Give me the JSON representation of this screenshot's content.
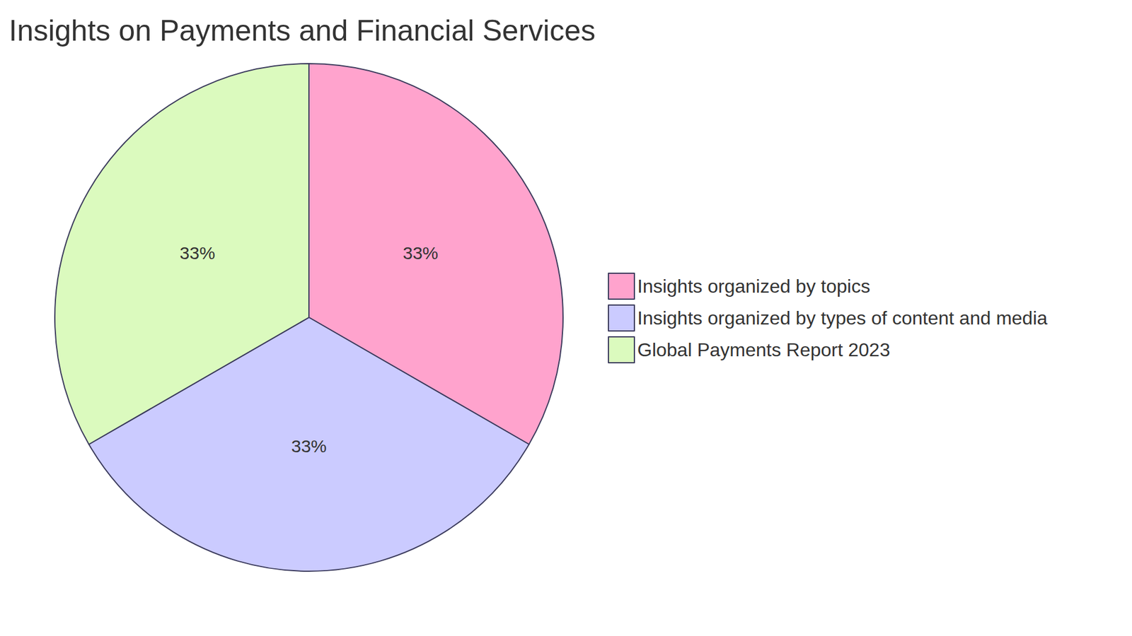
{
  "chart_data": {
    "type": "pie",
    "title": "Insights on Payments and Financial Services",
    "categories": [
      "Insights organized by topics",
      "Insights organized by types of content and media",
      "Global Payments Report 2023"
    ],
    "values": [
      33,
      33,
      33
    ],
    "value_labels": [
      "33%",
      "33%",
      "33%"
    ],
    "colors": [
      "#ffa3cd",
      "#cbcbff",
      "#dbfabe"
    ],
    "data_labels": true,
    "legend": "right"
  }
}
